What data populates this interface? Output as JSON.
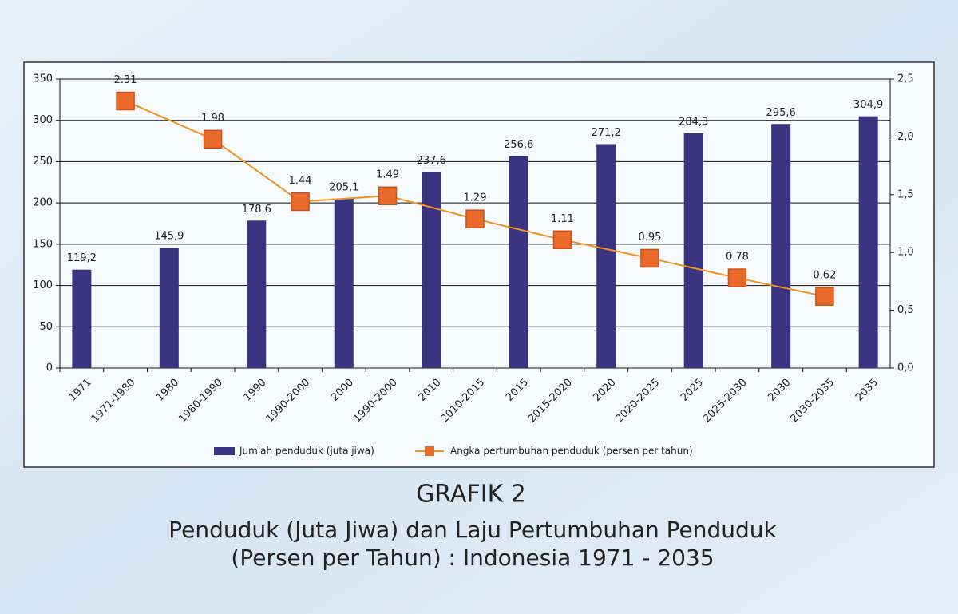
{
  "chart_data": {
    "type": "bar-line",
    "title": "GRAFIK 2",
    "subtitle": [
      "Penduduk (Juta Jiwa) dan Laju Pertumbuhan Penduduk",
      "(Persen per Tahun) : Indonesia 1971 - 2035"
    ],
    "categories": [
      "1971",
      "1971-1980",
      "1980",
      "1980-1990",
      "1990",
      "1990-2000",
      "2000",
      "1990-2000",
      "2010",
      "2010-2015",
      "2015",
      "2015-2020",
      "2020",
      "2020-2025",
      "2025",
      "2025-2030",
      "2030",
      "2030-2035",
      "2035"
    ],
    "series": [
      {
        "name": "Jumlah penduduk (juta jiwa)",
        "type": "bar",
        "color": "#3a3380",
        "values": [
          119.2,
          null,
          145.9,
          null,
          178.6,
          null,
          205.1,
          null,
          237.6,
          null,
          256.6,
          null,
          271.2,
          null,
          284.3,
          null,
          295.6,
          null,
          304.9
        ],
        "value_labels": [
          "119,2",
          null,
          "145,9",
          null,
          "178,6",
          null,
          "205,1",
          null,
          "237,6",
          null,
          "256,6",
          null,
          "271,2",
          null,
          "284,3",
          null,
          "295,6",
          null,
          "304,9"
        ]
      },
      {
        "name": "Angka pertumbuhan penduduk (persen per tahun)",
        "type": "line",
        "axis": "y2",
        "color": "#f29222",
        "marker_color": "#ea6a2a",
        "values": [
          null,
          2.31,
          null,
          1.98,
          null,
          1.44,
          null,
          1.49,
          null,
          1.29,
          null,
          1.11,
          null,
          0.95,
          null,
          0.78,
          null,
          0.62,
          null
        ]
      }
    ],
    "ylim": [
      0,
      350
    ],
    "yticks": [
      0,
      50,
      100,
      150,
      200,
      250,
      300,
      350
    ],
    "y2lim": [
      0,
      2.5
    ],
    "y2ticks": [
      {
        "value": 0,
        "label": "0,0"
      },
      {
        "value": 0.5,
        "label": "0,5"
      },
      {
        "value": 1,
        "label": "1,0"
      },
      {
        "value": 1.5,
        "label": "1,5"
      },
      {
        "value": 2,
        "label": "2,0"
      },
      {
        "value": 2.5,
        "label": "2,5"
      }
    ],
    "grid": true,
    "legend": "bottom"
  }
}
